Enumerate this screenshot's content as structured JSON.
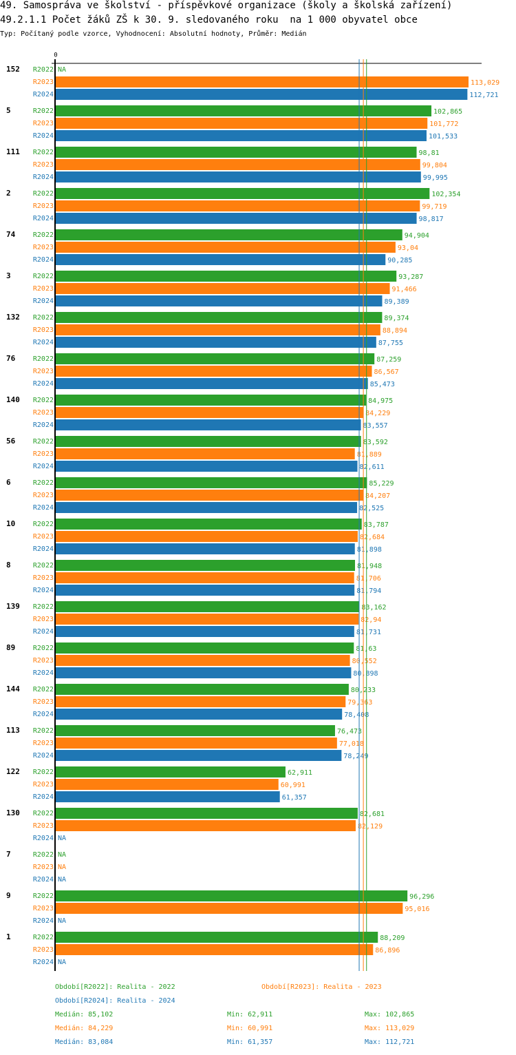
{
  "header": {
    "title": "49. Samospráva ve školství - příspěvkové organizace (školy a školská zařízení)",
    "subtitle": "49.2.1.1 Počet žáků ZŠ k 30. 9. sledovaného roku  na 1 000 obyvatel obce",
    "meta": "Typ: Počítaný podle vzorce, Vyhodnocení: Absolutní hodnoty, Průměr: Medián"
  },
  "colors": {
    "R2022": "#2ca02c",
    "R2023": "#ff7f0e",
    "R2024": "#1f77b4"
  },
  "chart_data": {
    "type": "bar",
    "orientation": "horizontal",
    "title": "49.2.1.1 Počet žáků ZŠ k 30. 9. sledovaného roku  na 1 000 obyvatel obce",
    "xlabel": "",
    "ylabel": "",
    "x_tick_labels": [
      "0"
    ],
    "xlim": [
      0,
      113.029
    ],
    "grid": false,
    "na_label": "NA",
    "series_names": [
      "R2022",
      "R2023",
      "R2024"
    ],
    "categories": [
      "152",
      "5",
      "111",
      "2",
      "74",
      "3",
      "132",
      "76",
      "140",
      "56",
      "6",
      "10",
      "8",
      "139",
      "89",
      "144",
      "113",
      "122",
      "130",
      "7",
      "9",
      "1"
    ],
    "series": [
      {
        "name": "R2022",
        "values": [
          null,
          102.865,
          98.81,
          102.354,
          94.904,
          93.287,
          89.374,
          87.259,
          84.975,
          83.592,
          85.229,
          83.787,
          81.948,
          83.162,
          81.63,
          80.233,
          76.473,
          62.911,
          82.681,
          null,
          96.296,
          88.209
        ],
        "labels": [
          "NA",
          "102,865",
          "98,81",
          "102,354",
          "94,904",
          "93,287",
          "89,374",
          "87,259",
          "84,975",
          "83,592",
          "85,229",
          "83,787",
          "81,948",
          "83,162",
          "81,63",
          "80,233",
          "76,473",
          "62,911",
          "82,681",
          "NA",
          "96,296",
          "88,209"
        ]
      },
      {
        "name": "R2023",
        "values": [
          113.029,
          101.772,
          99.804,
          99.719,
          93.04,
          91.466,
          88.894,
          86.567,
          84.229,
          81.889,
          84.207,
          82.684,
          81.706,
          82.94,
          80.552,
          79.363,
          77.018,
          60.991,
          82.129,
          null,
          95.016,
          86.896
        ],
        "labels": [
          "113,029",
          "101,772",
          "99,804",
          "99,719",
          "93,04",
          "91,466",
          "88,894",
          "86,567",
          "84,229",
          "81,889",
          "84,207",
          "82,684",
          "81,706",
          "82,94",
          "80,552",
          "79,363",
          "77,018",
          "60,991",
          "82,129",
          "NA",
          "95,016",
          "86,896"
        ]
      },
      {
        "name": "R2024",
        "values": [
          112.721,
          101.533,
          99.995,
          98.817,
          90.285,
          89.389,
          87.755,
          85.473,
          83.557,
          82.611,
          82.525,
          81.898,
          81.794,
          81.731,
          80.898,
          78.408,
          78.249,
          61.357,
          null,
          null,
          null,
          null
        ],
        "labels": [
          "112,721",
          "101,533",
          "99,995",
          "98,817",
          "90,285",
          "89,389",
          "87,755",
          "85,473",
          "83,557",
          "82,611",
          "82,525",
          "81,898",
          "81,794",
          "81,731",
          "80,898",
          "78,408",
          "78,249",
          "61,357",
          "NA",
          "NA",
          "NA",
          "NA"
        ]
      }
    ],
    "reference_lines": [
      {
        "series": "R2022",
        "type": "median",
        "value": 85.102
      },
      {
        "series": "R2023",
        "type": "median",
        "value": 84.229
      },
      {
        "series": "R2024",
        "type": "median",
        "value": 83.084
      }
    ],
    "legend": [
      {
        "series": "R2022",
        "text": "Období[R2022]: Realita - 2022"
      },
      {
        "series": "R2023",
        "text": "Období[R2023]: Realita - 2023"
      },
      {
        "series": "R2024",
        "text": "Období[R2024]: Realita - 2024"
      }
    ],
    "legend_position": "bottom",
    "stats": [
      {
        "series": "R2022",
        "median": "Medián: 85,102",
        "min": "Min: 62,911",
        "max": "Max: 102,865"
      },
      {
        "series": "R2023",
        "median": "Medián: 84,229",
        "min": "Min: 60,991",
        "max": "Max: 113,029"
      },
      {
        "series": "R2024",
        "median": "Medián: 83,084",
        "min": "Min: 61,357",
        "max": "Max: 112,721"
      }
    ]
  }
}
